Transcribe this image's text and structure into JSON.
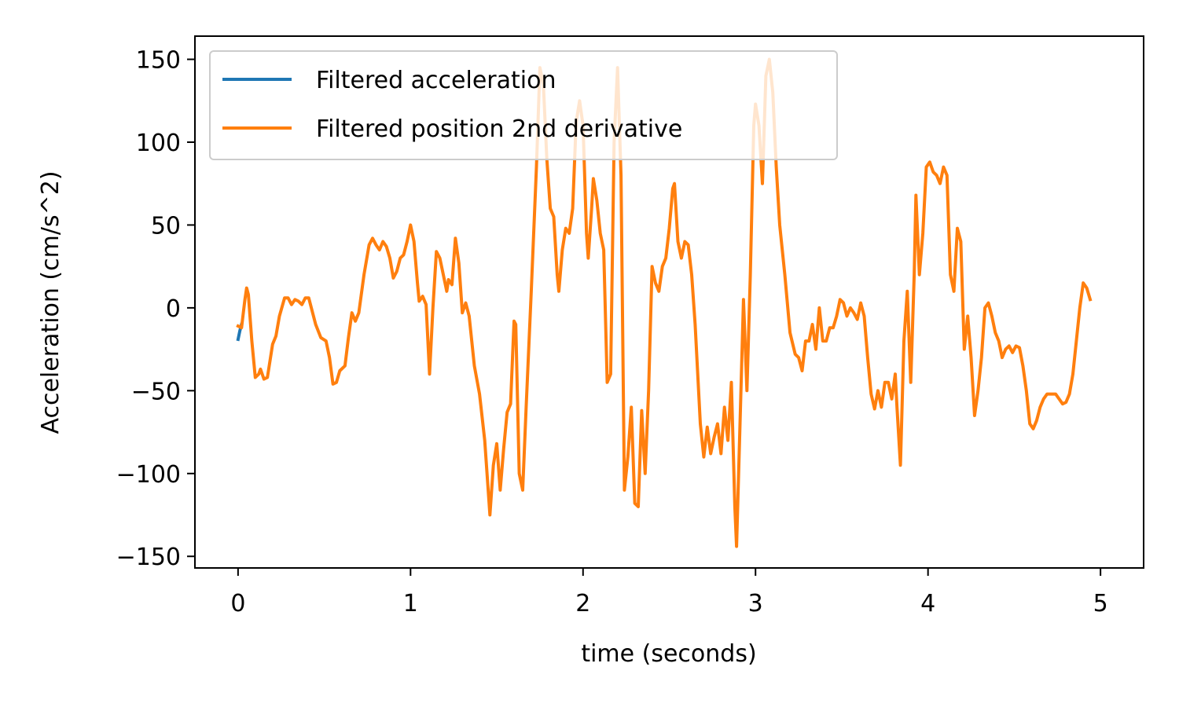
{
  "chart_data": {
    "type": "line",
    "title": "",
    "xlabel": "time (seconds)",
    "ylabel": "Acceleration (cm/s^2)",
    "xlim": [
      -0.25,
      5.25
    ],
    "ylim": [
      -157,
      164
    ],
    "xticks": [
      0,
      1,
      2,
      3,
      4,
      5
    ],
    "xtick_labels": [
      "0",
      "1",
      "2",
      "3",
      "4",
      "5"
    ],
    "yticks": [
      150,
      100,
      50,
      0,
      -50,
      -100,
      -150
    ],
    "ytick_labels": [
      "150",
      "100",
      "50",
      "0",
      "−50",
      "−100",
      "−150"
    ],
    "grid": false,
    "legend_position": "top-left",
    "series": [
      {
        "name": "Filtered acceleration",
        "color": "#1f77b4",
        "points": [
          [
            0.0,
            -19
          ],
          [
            0.01,
            -14
          ],
          [
            0.02,
            -10
          ]
        ]
      },
      {
        "name": "Filtered position 2nd derivative",
        "color": "#ff7f0e",
        "points": [
          [
            0.0,
            -11
          ],
          [
            0.02,
            -12
          ],
          [
            0.04,
            5
          ],
          [
            0.05,
            12
          ],
          [
            0.06,
            8
          ],
          [
            0.08,
            -20
          ],
          [
            0.1,
            -42
          ],
          [
            0.12,
            -40
          ],
          [
            0.13,
            -37
          ],
          [
            0.15,
            -43
          ],
          [
            0.17,
            -42
          ],
          [
            0.2,
            -22
          ],
          [
            0.22,
            -17
          ],
          [
            0.24,
            -5
          ],
          [
            0.27,
            6
          ],
          [
            0.29,
            6
          ],
          [
            0.31,
            2
          ],
          [
            0.33,
            5
          ],
          [
            0.35,
            4
          ],
          [
            0.37,
            2
          ],
          [
            0.39,
            6
          ],
          [
            0.41,
            6
          ],
          [
            0.43,
            -2
          ],
          [
            0.45,
            -10
          ],
          [
            0.48,
            -18
          ],
          [
            0.51,
            -20
          ],
          [
            0.53,
            -30
          ],
          [
            0.55,
            -46
          ],
          [
            0.57,
            -45
          ],
          [
            0.59,
            -38
          ],
          [
            0.62,
            -35
          ],
          [
            0.64,
            -18
          ],
          [
            0.66,
            -3
          ],
          [
            0.68,
            -8
          ],
          [
            0.7,
            -3
          ],
          [
            0.73,
            20
          ],
          [
            0.76,
            38
          ],
          [
            0.78,
            42
          ],
          [
            0.8,
            38
          ],
          [
            0.82,
            35
          ],
          [
            0.84,
            40
          ],
          [
            0.86,
            37
          ],
          [
            0.88,
            30
          ],
          [
            0.9,
            18
          ],
          [
            0.92,
            22
          ],
          [
            0.94,
            30
          ],
          [
            0.96,
            32
          ],
          [
            0.98,
            40
          ],
          [
            1.0,
            50
          ],
          [
            1.02,
            40
          ],
          [
            1.04,
            15
          ],
          [
            1.05,
            4
          ],
          [
            1.07,
            7
          ],
          [
            1.09,
            2
          ],
          [
            1.11,
            -40
          ],
          [
            1.13,
            0
          ],
          [
            1.15,
            34
          ],
          [
            1.17,
            30
          ],
          [
            1.19,
            20
          ],
          [
            1.21,
            10
          ],
          [
            1.22,
            17
          ],
          [
            1.24,
            14
          ],
          [
            1.26,
            42
          ],
          [
            1.28,
            27
          ],
          [
            1.3,
            -3
          ],
          [
            1.32,
            3
          ],
          [
            1.34,
            -5
          ],
          [
            1.37,
            -35
          ],
          [
            1.4,
            -52
          ],
          [
            1.43,
            -80
          ],
          [
            1.46,
            -125
          ],
          [
            1.48,
            -95
          ],
          [
            1.5,
            -82
          ],
          [
            1.52,
            -110
          ],
          [
            1.54,
            -85
          ],
          [
            1.56,
            -63
          ],
          [
            1.58,
            -58
          ],
          [
            1.6,
            -8
          ],
          [
            1.61,
            -10
          ],
          [
            1.63,
            -100
          ],
          [
            1.65,
            -110
          ],
          [
            1.67,
            -60
          ],
          [
            1.7,
            10
          ],
          [
            1.73,
            85
          ],
          [
            1.75,
            145
          ],
          [
            1.77,
            135
          ],
          [
            1.79,
            90
          ],
          [
            1.81,
            60
          ],
          [
            1.83,
            55
          ],
          [
            1.85,
            20
          ],
          [
            1.86,
            10
          ],
          [
            1.88,
            35
          ],
          [
            1.9,
            48
          ],
          [
            1.92,
            45
          ],
          [
            1.94,
            60
          ],
          [
            1.96,
            112
          ],
          [
            1.98,
            125
          ],
          [
            2.0,
            110
          ],
          [
            2.02,
            45
          ],
          [
            2.03,
            30
          ],
          [
            2.05,
            60
          ],
          [
            2.06,
            78
          ],
          [
            2.08,
            65
          ],
          [
            2.1,
            45
          ],
          [
            2.12,
            35
          ],
          [
            2.14,
            -45
          ],
          [
            2.16,
            -40
          ],
          [
            2.18,
            100
          ],
          [
            2.2,
            145
          ],
          [
            2.22,
            80
          ],
          [
            2.24,
            -110
          ],
          [
            2.26,
            -90
          ],
          [
            2.28,
            -60
          ],
          [
            2.3,
            -118
          ],
          [
            2.32,
            -120
          ],
          [
            2.34,
            -62
          ],
          [
            2.36,
            -100
          ],
          [
            2.38,
            -50
          ],
          [
            2.4,
            25
          ],
          [
            2.42,
            15
          ],
          [
            2.44,
            10
          ],
          [
            2.46,
            25
          ],
          [
            2.48,
            30
          ],
          [
            2.5,
            48
          ],
          [
            2.52,
            72
          ],
          [
            2.53,
            75
          ],
          [
            2.55,
            40
          ],
          [
            2.57,
            30
          ],
          [
            2.59,
            40
          ],
          [
            2.61,
            38
          ],
          [
            2.63,
            20
          ],
          [
            2.65,
            -10
          ],
          [
            2.68,
            -70
          ],
          [
            2.7,
            -90
          ],
          [
            2.72,
            -72
          ],
          [
            2.74,
            -88
          ],
          [
            2.76,
            -78
          ],
          [
            2.78,
            -70
          ],
          [
            2.8,
            -88
          ],
          [
            2.82,
            -60
          ],
          [
            2.84,
            -80
          ],
          [
            2.86,
            -45
          ],
          [
            2.88,
            -120
          ],
          [
            2.89,
            -144
          ],
          [
            2.91,
            -70
          ],
          [
            2.93,
            5
          ],
          [
            2.95,
            -50
          ],
          [
            2.97,
            20
          ],
          [
            2.99,
            110
          ],
          [
            3.0,
            123
          ],
          [
            3.02,
            110
          ],
          [
            3.04,
            75
          ],
          [
            3.06,
            140
          ],
          [
            3.08,
            150
          ],
          [
            3.1,
            130
          ],
          [
            3.12,
            85
          ],
          [
            3.14,
            50
          ],
          [
            3.17,
            20
          ],
          [
            3.2,
            -15
          ],
          [
            3.23,
            -28
          ],
          [
            3.25,
            -30
          ],
          [
            3.27,
            -38
          ],
          [
            3.29,
            -20
          ],
          [
            3.31,
            -20
          ],
          [
            3.33,
            -10
          ],
          [
            3.35,
            -25
          ],
          [
            3.37,
            0
          ],
          [
            3.39,
            -20
          ],
          [
            3.41,
            -20
          ],
          [
            3.43,
            -12
          ],
          [
            3.45,
            -12
          ],
          [
            3.47,
            -5
          ],
          [
            3.49,
            5
          ],
          [
            3.51,
            3
          ],
          [
            3.53,
            -5
          ],
          [
            3.55,
            0
          ],
          [
            3.57,
            -3
          ],
          [
            3.59,
            -7
          ],
          [
            3.61,
            3
          ],
          [
            3.63,
            -5
          ],
          [
            3.65,
            -30
          ],
          [
            3.67,
            -52
          ],
          [
            3.69,
            -61
          ],
          [
            3.71,
            -50
          ],
          [
            3.73,
            -60
          ],
          [
            3.75,
            -45
          ],
          [
            3.77,
            -45
          ],
          [
            3.79,
            -55
          ],
          [
            3.81,
            -40
          ],
          [
            3.82,
            -60
          ],
          [
            3.84,
            -95
          ],
          [
            3.86,
            -20
          ],
          [
            3.88,
            10
          ],
          [
            3.9,
            -45
          ],
          [
            3.92,
            20
          ],
          [
            3.93,
            68
          ],
          [
            3.95,
            20
          ],
          [
            3.97,
            45
          ],
          [
            3.99,
            85
          ],
          [
            4.01,
            88
          ],
          [
            4.03,
            82
          ],
          [
            4.05,
            80
          ],
          [
            4.07,
            75
          ],
          [
            4.09,
            85
          ],
          [
            4.11,
            80
          ],
          [
            4.13,
            20
          ],
          [
            4.15,
            10
          ],
          [
            4.17,
            48
          ],
          [
            4.19,
            40
          ],
          [
            4.21,
            -25
          ],
          [
            4.23,
            -5
          ],
          [
            4.25,
            -30
          ],
          [
            4.27,
            -65
          ],
          [
            4.29,
            -50
          ],
          [
            4.31,
            -30
          ],
          [
            4.33,
            0
          ],
          [
            4.35,
            3
          ],
          [
            4.37,
            -5
          ],
          [
            4.39,
            -15
          ],
          [
            4.41,
            -20
          ],
          [
            4.43,
            -30
          ],
          [
            4.45,
            -25
          ],
          [
            4.47,
            -23
          ],
          [
            4.49,
            -27
          ],
          [
            4.51,
            -23
          ],
          [
            4.53,
            -24
          ],
          [
            4.55,
            -35
          ],
          [
            4.57,
            -50
          ],
          [
            4.59,
            -70
          ],
          [
            4.61,
            -73
          ],
          [
            4.63,
            -68
          ],
          [
            4.65,
            -60
          ],
          [
            4.67,
            -55
          ],
          [
            4.69,
            -52
          ],
          [
            4.72,
            -52
          ],
          [
            4.74,
            -52
          ],
          [
            4.76,
            -55
          ],
          [
            4.78,
            -58
          ],
          [
            4.8,
            -57
          ],
          [
            4.82,
            -52
          ],
          [
            4.84,
            -40
          ],
          [
            4.86,
            -20
          ],
          [
            4.88,
            0
          ],
          [
            4.9,
            15
          ],
          [
            4.92,
            12
          ],
          [
            4.94,
            5
          ]
        ]
      }
    ]
  }
}
